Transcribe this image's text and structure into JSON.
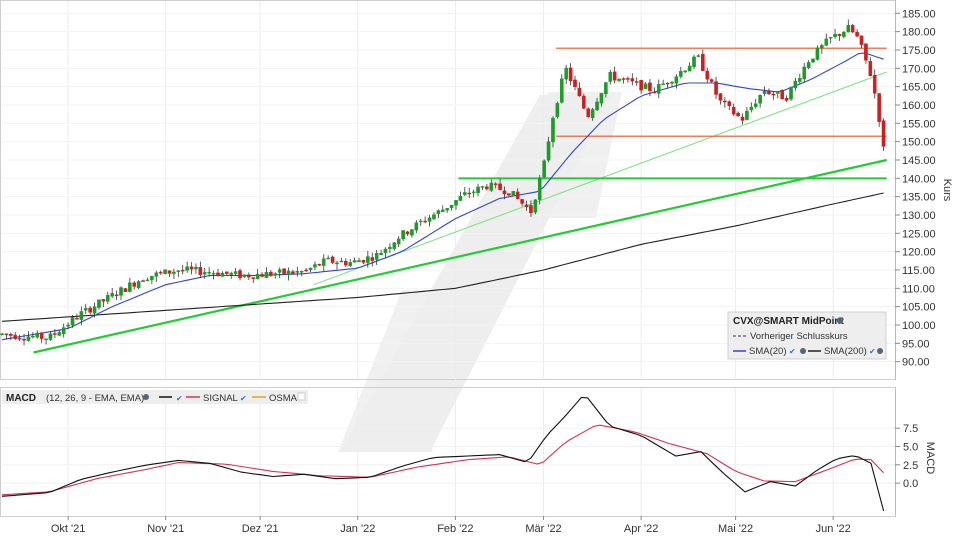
{
  "chart_data": [
    {
      "type": "candlestick",
      "symbol": "CVX@SMART MidPoint",
      "ylabel": "Kurs",
      "ylim": [
        85,
        187
      ],
      "yticks": [
        90,
        95,
        100,
        105,
        110,
        115,
        120,
        125,
        130,
        135,
        140,
        145,
        150,
        155,
        160,
        165,
        170,
        175,
        180,
        185
      ],
      "ytick_labels": [
        "90.00",
        "95.00",
        "100.00",
        "105.00",
        "110.00",
        "115.00",
        "120.00",
        "125.00",
        "130.00",
        "135.00",
        "140.00",
        "145.00",
        "150.00",
        "155.00",
        "160.00",
        "165.00",
        "170.00",
        "175.00",
        "180.00",
        "185.00"
      ],
      "xlim": [
        "2021-09-10",
        "2022-06-20"
      ],
      "x_ticks": [
        {
          "date": "2021-10-01",
          "label": "Okt '21"
        },
        {
          "date": "2021-11-01",
          "label": "Nov '21"
        },
        {
          "date": "2021-12-01",
          "label": "Dez '21"
        },
        {
          "date": "2022-01-01",
          "label": "Jan '22"
        },
        {
          "date": "2022-02-01",
          "label": "Feb '22"
        },
        {
          "date": "2022-03-01",
          "label": "Mär '22"
        },
        {
          "date": "2022-04-01",
          "label": "Apr '22"
        },
        {
          "date": "2022-05-01",
          "label": "Mai '22"
        },
        {
          "date": "2022-06-01",
          "label": "Jun '22"
        }
      ],
      "price_anchors": [
        [
          "2021-09-10",
          97.5
        ],
        [
          "2021-09-25",
          96.5
        ],
        [
          "2021-10-05",
          103
        ],
        [
          "2021-10-15",
          108
        ],
        [
          "2021-10-25",
          113
        ],
        [
          "2021-11-05",
          115
        ],
        [
          "2021-11-15",
          114.5
        ],
        [
          "2021-11-25",
          113.5
        ],
        [
          "2021-12-05",
          114
        ],
        [
          "2021-12-15",
          114.5
        ],
        [
          "2021-12-22",
          117.5
        ],
        [
          "2021-12-30",
          117
        ],
        [
          "2022-01-07",
          119
        ],
        [
          "2022-01-14",
          124
        ],
        [
          "2022-01-21",
          128
        ],
        [
          "2022-01-28",
          131.5
        ],
        [
          "2022-02-04",
          135.5
        ],
        [
          "2022-02-11",
          138
        ],
        [
          "2022-02-18",
          136.5
        ],
        [
          "2022-02-25",
          131
        ],
        [
          "2022-03-01",
          143
        ],
        [
          "2022-03-04",
          157
        ],
        [
          "2022-03-08",
          170
        ],
        [
          "2022-03-15",
          157
        ],
        [
          "2022-03-22",
          168
        ],
        [
          "2022-03-29",
          166
        ],
        [
          "2022-04-05",
          164
        ],
        [
          "2022-04-12",
          168
        ],
        [
          "2022-04-19",
          173
        ],
        [
          "2022-04-26",
          161
        ],
        [
          "2022-05-03",
          156
        ],
        [
          "2022-05-10",
          164
        ],
        [
          "2022-05-17",
          162
        ],
        [
          "2022-05-24",
          172
        ],
        [
          "2022-05-31",
          178
        ],
        [
          "2022-06-06",
          181
        ],
        [
          "2022-06-09",
          178
        ],
        [
          "2022-06-13",
          168
        ],
        [
          "2022-06-15",
          160
        ],
        [
          "2022-06-17",
          148
        ]
      ],
      "sma20_anchors": [
        [
          "2021-09-10",
          96
        ],
        [
          "2021-10-01",
          99
        ],
        [
          "2021-10-15",
          105
        ],
        [
          "2021-11-01",
          111
        ],
        [
          "2021-11-15",
          113.5
        ],
        [
          "2021-12-01",
          113.5
        ],
        [
          "2021-12-15",
          114
        ],
        [
          "2022-01-01",
          115.5
        ],
        [
          "2022-01-15",
          120
        ],
        [
          "2022-02-01",
          129
        ],
        [
          "2022-02-15",
          134.5
        ],
        [
          "2022-02-28",
          136.5
        ],
        [
          "2022-03-10",
          147
        ],
        [
          "2022-03-20",
          156
        ],
        [
          "2022-04-01",
          162.5
        ],
        [
          "2022-04-15",
          166
        ],
        [
          "2022-04-25",
          166
        ],
        [
          "2022-05-05",
          164.5
        ],
        [
          "2022-05-15",
          163.5
        ],
        [
          "2022-05-25",
          167
        ],
        [
          "2022-06-05",
          172
        ],
        [
          "2022-06-10",
          174.5
        ],
        [
          "2022-06-17",
          172.5
        ]
      ],
      "sma200_anchors": [
        [
          "2021-09-10",
          101
        ],
        [
          "2021-11-01",
          104
        ],
        [
          "2022-01-01",
          107.5
        ],
        [
          "2022-02-01",
          110
        ],
        [
          "2022-03-01",
          115
        ],
        [
          "2022-04-01",
          122
        ],
        [
          "2022-05-01",
          127
        ],
        [
          "2022-06-01",
          133
        ],
        [
          "2022-06-17",
          136
        ]
      ],
      "horizontal_lines": [
        {
          "value": 175.5,
          "color": "#e2572c",
          "from": "2022-03-05",
          "to": "2022-06-18"
        },
        {
          "value": 151.5,
          "color": "#e2572c",
          "from": "2022-03-05",
          "to": "2022-06-18"
        },
        {
          "value": 140,
          "color": "#22cc33",
          "from": "2022-02-02",
          "to": "2022-06-18"
        }
      ],
      "trend_lines": [
        {
          "from": [
            "2021-09-20",
            92.5
          ],
          "to": [
            "2022-06-18",
            145
          ],
          "color": "#22cc33",
          "width": 2.2
        },
        {
          "from": [
            "2021-12-18",
            111
          ],
          "to": [
            "2022-06-18",
            169
          ],
          "color": "#7de07d",
          "width": 1
        }
      ],
      "legend": {
        "title": "CVX@SMART MidPoint",
        "prev_close": "Vorheriger Schlusskurs",
        "sma20": "SMA(20)",
        "sma200": "SMA(200)"
      },
      "colors": {
        "up": "#1f9a2a",
        "down": "#cc1f1f",
        "sma20": "#3344cc",
        "sma200": "#222222"
      }
    },
    {
      "type": "line",
      "label": "MACD",
      "params": "(12, 26, 9 - EMA, EMA)",
      "ylabel": "MACD",
      "ylim": [
        -4.5,
        13
      ],
      "yticks": [
        0,
        2.5,
        5,
        7.5
      ],
      "ytick_labels": [
        "0.0",
        "2.5",
        "5.0",
        "7.5"
      ],
      "series": [
        {
          "name": "MACD",
          "color": "#111111",
          "anchors": [
            [
              "2021-09-10",
              -1.8
            ],
            [
              "2021-09-25",
              -1.3
            ],
            [
              "2021-10-05",
              0.5
            ],
            [
              "2021-10-15",
              1.5
            ],
            [
              "2021-10-25",
              2.4
            ],
            [
              "2021-11-05",
              3.1
            ],
            [
              "2021-11-15",
              2.7
            ],
            [
              "2021-11-25",
              1.5
            ],
            [
              "2021-12-05",
              0.9
            ],
            [
              "2021-12-15",
              1.2
            ],
            [
              "2021-12-25",
              0.6
            ],
            [
              "2022-01-05",
              0.8
            ],
            [
              "2022-01-15",
              2.3
            ],
            [
              "2022-01-25",
              3.5
            ],
            [
              "2022-02-05",
              3.7
            ],
            [
              "2022-02-15",
              3.9
            ],
            [
              "2022-02-24",
              2.8
            ],
            [
              "2022-03-02",
              6.5
            ],
            [
              "2022-03-08",
              9.2
            ],
            [
              "2022-03-14",
              12.2
            ],
            [
              "2022-03-22",
              7.8
            ],
            [
              "2022-04-01",
              6.5
            ],
            [
              "2022-04-12",
              3.7
            ],
            [
              "2022-04-20",
              4.3
            ],
            [
              "2022-04-27",
              1.4
            ],
            [
              "2022-05-04",
              -1.2
            ],
            [
              "2022-05-12",
              0.2
            ],
            [
              "2022-05-20",
              -0.4
            ],
            [
              "2022-05-27",
              1.8
            ],
            [
              "2022-06-02",
              3.3
            ],
            [
              "2022-06-08",
              3.8
            ],
            [
              "2022-06-13",
              2.7
            ],
            [
              "2022-06-17",
              -3.8
            ]
          ]
        },
        {
          "name": "SIGNAL",
          "color": "#d33355",
          "anchors": [
            [
              "2021-09-10",
              -1.6
            ],
            [
              "2021-09-25",
              -1.2
            ],
            [
              "2021-10-10",
              0.6
            ],
            [
              "2021-10-25",
              1.8
            ],
            [
              "2021-11-05",
              2.8
            ],
            [
              "2021-11-20",
              2.6
            ],
            [
              "2021-12-05",
              1.6
            ],
            [
              "2021-12-20",
              1.0
            ],
            [
              "2022-01-05",
              0.8
            ],
            [
              "2022-01-20",
              2.2
            ],
            [
              "2022-02-05",
              3.2
            ],
            [
              "2022-02-18",
              3.6
            ],
            [
              "2022-02-28",
              2.5
            ],
            [
              "2022-03-08",
              5.6
            ],
            [
              "2022-03-18",
              8.0
            ],
            [
              "2022-03-30",
              7.0
            ],
            [
              "2022-04-10",
              5.4
            ],
            [
              "2022-04-22",
              4.0
            ],
            [
              "2022-05-01",
              1.6
            ],
            [
              "2022-05-10",
              0.3
            ],
            [
              "2022-05-20",
              0.2
            ],
            [
              "2022-05-30",
              1.8
            ],
            [
              "2022-06-08",
              3.3
            ],
            [
              "2022-06-13",
              3.2
            ],
            [
              "2022-06-17",
              1.4
            ]
          ]
        }
      ],
      "legend": {
        "macd": "MACD",
        "params": "(12, 26, 9 - EMA, EMA)",
        "signal": "SIGNAL",
        "osma": "OSMA"
      },
      "osma_color": "#e8a020"
    }
  ]
}
